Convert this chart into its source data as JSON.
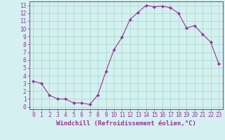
{
  "x": [
    0,
    1,
    2,
    3,
    4,
    5,
    6,
    7,
    8,
    9,
    10,
    11,
    12,
    13,
    14,
    15,
    16,
    17,
    18,
    19,
    20,
    21,
    22,
    23
  ],
  "y": [
    3.3,
    3.0,
    1.5,
    1.0,
    1.0,
    0.5,
    0.5,
    0.3,
    1.5,
    4.5,
    7.3,
    8.9,
    11.2,
    12.1,
    13.0,
    12.8,
    12.9,
    12.7,
    12.0,
    10.1,
    10.4,
    9.3,
    8.3,
    5.5
  ],
  "line_color": "#993399",
  "marker": "D",
  "marker_size": 2,
  "bg_color": "#d4f0f0",
  "grid_color": "#aaddcc",
  "xlabel": "Windchill (Refroidissement éolien,°C)",
  "xlim": [
    -0.5,
    23.5
  ],
  "ylim": [
    -0.3,
    13.5
  ],
  "xticks": [
    0,
    1,
    2,
    3,
    4,
    5,
    6,
    7,
    8,
    9,
    10,
    11,
    12,
    13,
    14,
    15,
    16,
    17,
    18,
    19,
    20,
    21,
    22,
    23
  ],
  "yticks": [
    0,
    1,
    2,
    3,
    4,
    5,
    6,
    7,
    8,
    9,
    10,
    11,
    12,
    13
  ],
  "tick_fontsize": 5.5,
  "xlabel_fontsize": 6.5,
  "label_color": "#993399",
  "line_width": 0.8,
  "spine_color": "#993399"
}
